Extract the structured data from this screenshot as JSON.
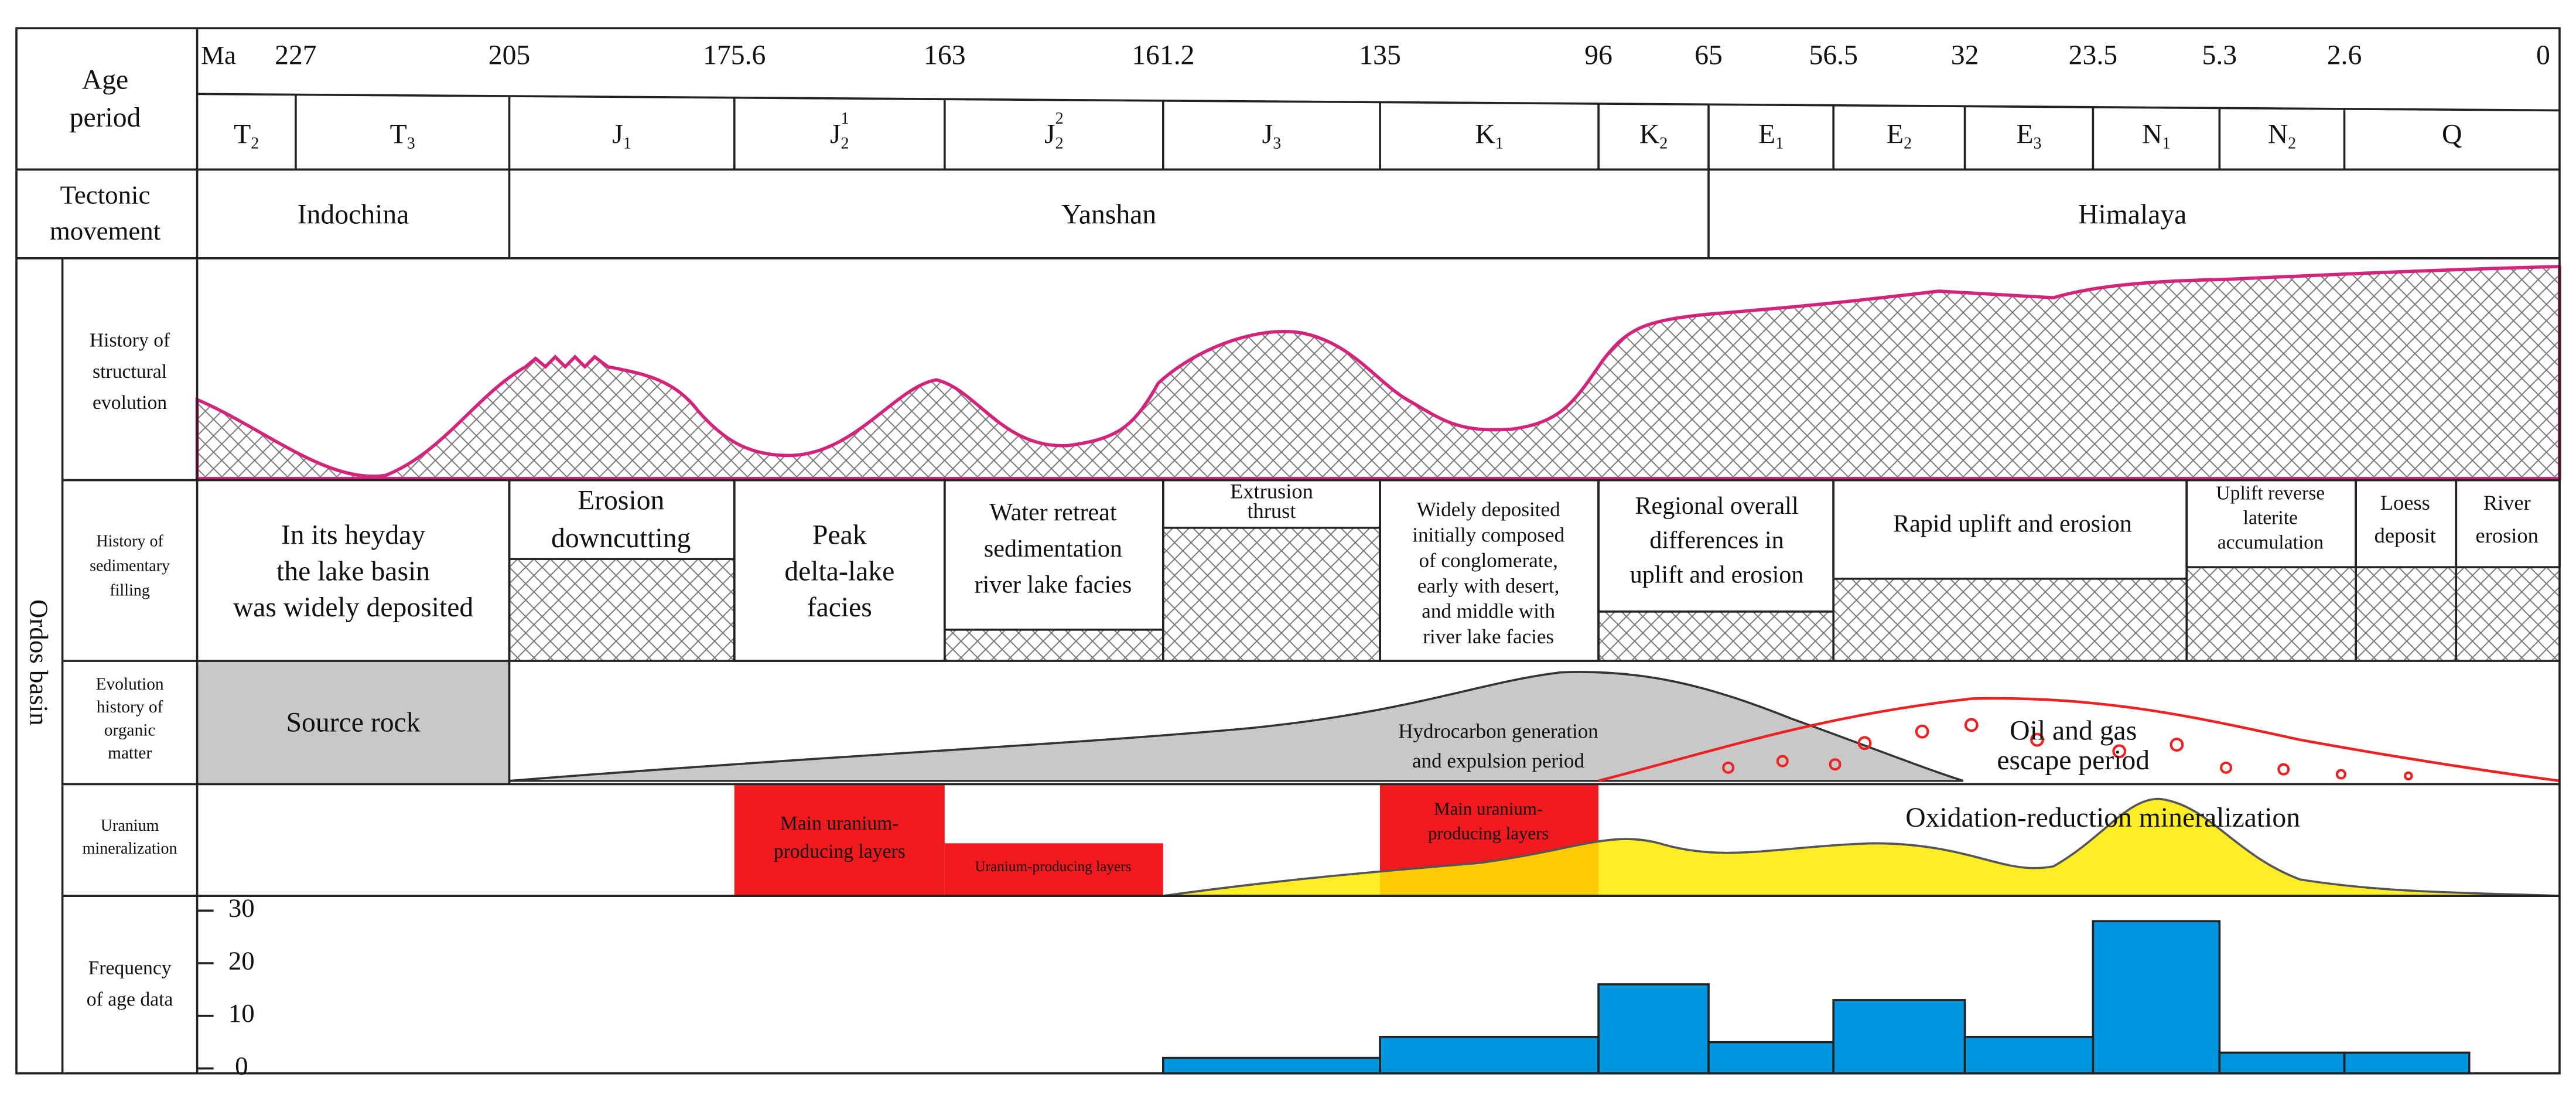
{
  "header": {
    "age_label": [
      "Age",
      "period"
    ],
    "ma": "Ma",
    "ages": [
      "227",
      "205",
      "175.6",
      "163",
      "161.2",
      "135",
      "96",
      "65",
      "56.5",
      "32",
      "23.5",
      "5.3",
      "2.6",
      "0"
    ],
    "periods": [
      {
        "main": "T",
        "sub": "2"
      },
      {
        "main": "T",
        "sub": "3"
      },
      {
        "main": "J",
        "sub": "1"
      },
      {
        "main": "J",
        "sub": "2",
        "sup": "1"
      },
      {
        "main": "J",
        "sub": "2",
        "sup": "2"
      },
      {
        "main": "J",
        "sub": "3"
      },
      {
        "main": "K",
        "sub": "1"
      },
      {
        "main": "K",
        "sub": "2"
      },
      {
        "main": "E",
        "sub": "1"
      },
      {
        "main": "E",
        "sub": "2"
      },
      {
        "main": "E",
        "sub": "3"
      },
      {
        "main": "N",
        "sub": "1"
      },
      {
        "main": "N",
        "sub": "2"
      },
      {
        "main": "Q"
      }
    ]
  },
  "tectonic": {
    "label": [
      "Tectonic",
      "movement"
    ],
    "items": [
      "Indochina",
      "Yanshan",
      "Himalaya"
    ]
  },
  "basin": "Ordos basin",
  "structural": {
    "label": [
      "History of",
      "structural",
      "evolution"
    ]
  },
  "sedimentary": {
    "label": [
      "History of",
      "sedimentary",
      "filling"
    ],
    "cells": [
      [
        "In its heyday",
        "the lake basin",
        "was widely deposited"
      ],
      [
        "Erosion",
        "downcutting"
      ],
      [
        "Peak",
        "delta-lake",
        "facies"
      ],
      [
        "Water retreat",
        "sedimentation",
        "river lake facies"
      ],
      [
        "Extrusion",
        "thrust"
      ],
      [
        "Widely deposited",
        "initially composed",
        "of conglomerate,",
        "early with desert,",
        "and middle with",
        "river lake facies"
      ],
      [
        "Regional overall",
        "differences in",
        "uplift and erosion"
      ],
      [
        "Rapid uplift and erosion"
      ],
      [
        "Uplift reverse",
        "laterite",
        "accumulation"
      ],
      [
        "Loess",
        "deposit"
      ],
      [
        "River",
        "erosion"
      ]
    ]
  },
  "organic": {
    "label": [
      "Evolution",
      "history of",
      "organic",
      "matter"
    ],
    "source_rock": "Source rock",
    "generation": [
      "Hydrocarbon generation",
      "and expulsion period"
    ],
    "escape": [
      "Oil and gas",
      "escape period"
    ]
  },
  "uranium": {
    "label": [
      "Uranium",
      "mineralization"
    ],
    "main_layers_1": [
      "Main uranium-",
      "producing layers"
    ],
    "layers": "Uranium-producing layers",
    "main_layers_2": [
      "Main uranium-",
      "producing layers"
    ],
    "oxidation": "Oxidation-reduction mineralization"
  },
  "chart_data": {
    "type": "bar",
    "ylabel": [
      "Frequency",
      "of age data"
    ],
    "values": [
      2,
      6,
      16,
      5,
      13,
      6,
      28,
      3,
      3
    ],
    "color": "#0096e0",
    "ylim": [
      0,
      30
    ],
    "yticks": [
      0,
      10,
      20,
      30
    ]
  }
}
